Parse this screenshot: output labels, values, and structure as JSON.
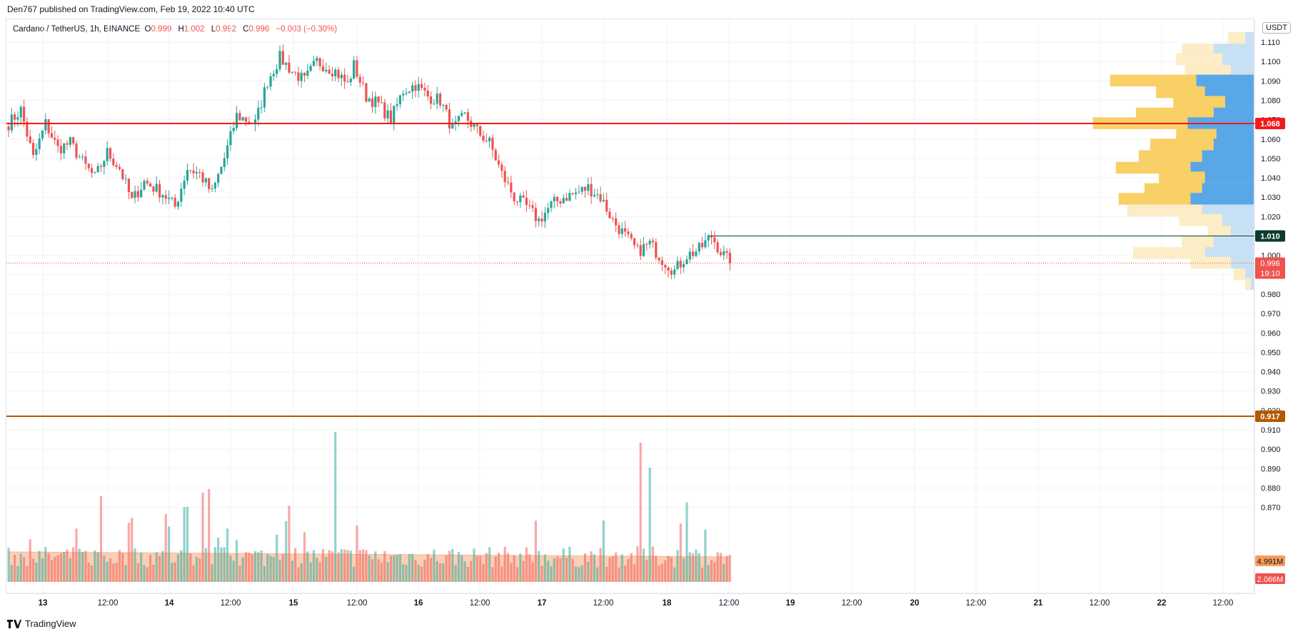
{
  "header": {
    "published": "Den767 published on TradingView.com, Feb 19, 2022 10:40 UTC"
  },
  "legend": {
    "symbol": "Cardano / TetherUS, 1h, BINANCE",
    "o_label": "O",
    "o": "0.999",
    "h_label": "H",
    "h": "1.002",
    "l_label": "L",
    "l": "0.992",
    "c_label": "C",
    "c": "0.996",
    "change": "−0.003 (−0.30%)"
  },
  "unit": "USDT",
  "footer": {
    "brand": "TradingView"
  },
  "colors": {
    "up": "#26a69a",
    "down": "#ef5350",
    "red_line": "#f21b1b",
    "brown_line": "#b35900",
    "green_line": "#0a3d2e"
  },
  "chart_data": {
    "type": "candlestick",
    "ylim": [
      0.87,
      1.113
    ],
    "y_ticks": [
      "1.110",
      "1.100",
      "1.090",
      "1.080",
      "1.070",
      "1.060",
      "1.050",
      "1.040",
      "1.030",
      "1.020",
      "1.010",
      "1.000",
      "0.990",
      "0.980",
      "0.970",
      "0.960",
      "0.950",
      "0.940",
      "0.930",
      "0.920",
      "0.910",
      "0.900",
      "0.890",
      "0.880",
      "0.870"
    ],
    "x_ticks": [
      "13",
      "12:00",
      "14",
      "12:00",
      "15",
      "12:00",
      "16",
      "12:00",
      "17",
      "12:00",
      "18",
      "12:00",
      "19",
      "12:00",
      "20",
      "12:00",
      "21",
      "12:00",
      "22",
      "12:00"
    ],
    "anchors": [
      [
        0,
        1.068
      ],
      [
        4,
        1.075
      ],
      [
        8,
        1.05
      ],
      [
        12,
        1.068
      ],
      [
        16,
        1.055
      ],
      [
        20,
        1.058
      ],
      [
        24,
        1.048
      ],
      [
        28,
        1.04
      ],
      [
        32,
        1.053
      ],
      [
        36,
        1.045
      ],
      [
        40,
        1.028
      ],
      [
        44,
        1.038
      ],
      [
        50,
        1.032
      ],
      [
        54,
        1.025
      ],
      [
        58,
        1.045
      ],
      [
        62,
        1.042
      ],
      [
        66,
        1.032
      ],
      [
        70,
        1.05
      ],
      [
        74,
        1.072
      ],
      [
        80,
        1.068
      ],
      [
        84,
        1.09
      ],
      [
        88,
        1.102
      ],
      [
        92,
        1.095
      ],
      [
        96,
        1.09
      ],
      [
        100,
        1.1
      ],
      [
        106,
        1.095
      ],
      [
        110,
        1.088
      ],
      [
        112,
        1.098
      ],
      [
        116,
        1.082
      ],
      [
        120,
        1.078
      ],
      [
        124,
        1.07
      ],
      [
        128,
        1.085
      ],
      [
        132,
        1.088
      ],
      [
        136,
        1.082
      ],
      [
        140,
        1.08
      ],
      [
        144,
        1.065
      ],
      [
        148,
        1.072
      ],
      [
        152,
        1.064
      ],
      [
        156,
        1.058
      ],
      [
        160,
        1.042
      ],
      [
        164,
        1.03
      ],
      [
        168,
        1.025
      ],
      [
        172,
        1.018
      ],
      [
        176,
        1.026
      ],
      [
        180,
        1.03
      ],
      [
        184,
        1.032
      ],
      [
        188,
        1.035
      ],
      [
        192,
        1.03
      ],
      [
        196,
        1.018
      ],
      [
        200,
        1.01
      ],
      [
        204,
        1.002
      ],
      [
        208,
        1.006
      ],
      [
        212,
        0.998
      ],
      [
        216,
        0.992
      ],
      [
        220,
        1.0
      ],
      [
        224,
        1.003
      ],
      [
        228,
        1.01
      ],
      [
        231,
        1.002
      ],
      [
        234,
        0.996
      ]
    ],
    "candle_count": 235,
    "levels": [
      {
        "price": 1.068,
        "label": "1.068",
        "color": "#f21b1b"
      },
      {
        "price": 1.01,
        "label": "1.010",
        "color": "#0a3d2e"
      },
      {
        "price": 0.917,
        "label": "0.917",
        "color": "#b35900"
      }
    ],
    "last_price": {
      "price": 0.996,
      "label": "0.996",
      "countdown": "19:10"
    },
    "volume": {
      "ma_label": "4.991M",
      "last_label": "2.066M"
    },
    "volume_profile": [
      {
        "price": 1.112,
        "up": 0.06,
        "down": 0.03,
        "va": false
      },
      {
        "price": 1.106,
        "up": 0.11,
        "down": 0.14,
        "va": false
      },
      {
        "price": 1.101,
        "up": 0.16,
        "down": 0.11,
        "va": false
      },
      {
        "price": 1.095,
        "up": 0.16,
        "down": 0.08,
        "va": false
      },
      {
        "price": 1.09,
        "up": 0.3,
        "down": 0.2,
        "va": true
      },
      {
        "price": 1.084,
        "up": 0.17,
        "down": 0.17,
        "va": true
      },
      {
        "price": 1.079,
        "up": 0.18,
        "down": 0.1,
        "va": true
      },
      {
        "price": 1.073,
        "up": 0.27,
        "down": 0.14,
        "va": true
      },
      {
        "price": 1.068,
        "up": 0.33,
        "down": 0.23,
        "va": true
      },
      {
        "price": 1.062,
        "up": 0.14,
        "down": 0.13,
        "va": true
      },
      {
        "price": 1.057,
        "up": 0.22,
        "down": 0.14,
        "va": true
      },
      {
        "price": 1.051,
        "up": 0.22,
        "down": 0.18,
        "va": true
      },
      {
        "price": 1.045,
        "up": 0.26,
        "down": 0.22,
        "va": true
      },
      {
        "price": 1.04,
        "up": 0.16,
        "down": 0.17,
        "va": true
      },
      {
        "price": 1.034,
        "up": 0.2,
        "down": 0.18,
        "va": true
      },
      {
        "price": 1.029,
        "up": 0.25,
        "down": 0.22,
        "va": true
      },
      {
        "price": 1.023,
        "up": 0.26,
        "down": 0.18,
        "va": false
      },
      {
        "price": 1.018,
        "up": 0.15,
        "down": 0.11,
        "va": false
      },
      {
        "price": 1.012,
        "up": 0.08,
        "down": 0.08,
        "va": false
      },
      {
        "price": 1.007,
        "up": 0.11,
        "down": 0.14,
        "va": false
      },
      {
        "price": 1.001,
        "up": 0.25,
        "down": 0.17,
        "va": false
      },
      {
        "price": 0.996,
        "up": 0.14,
        "down": 0.08,
        "va": false
      },
      {
        "price": 0.99,
        "up": 0.04,
        "down": 0.03,
        "va": false
      },
      {
        "price": 0.985,
        "up": 0.02,
        "down": 0.01,
        "va": false
      }
    ]
  }
}
